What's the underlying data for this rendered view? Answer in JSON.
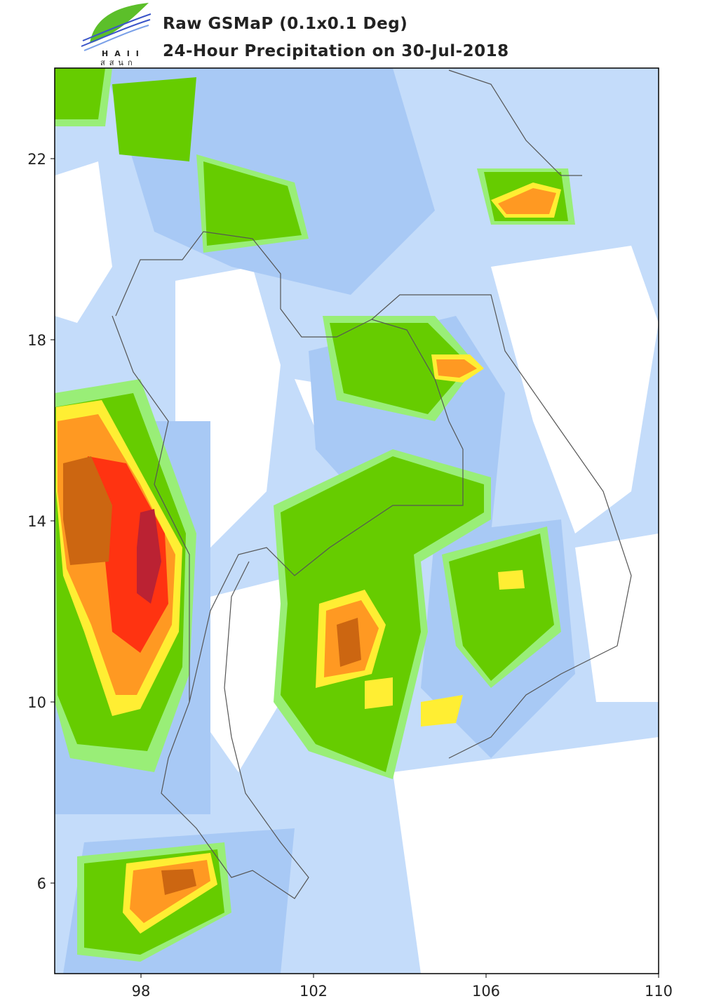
{
  "chart_data": {
    "type": "map",
    "title": "Raw GSMaP (0.1x0.1 Deg)",
    "subtitle": "24-Hour Precipitation on 30-Jul-2018",
    "xlim": [
      96,
      110
    ],
    "ylim": [
      4,
      24
    ],
    "xticks": [
      98,
      102,
      106,
      110
    ],
    "yticks": [
      6,
      10,
      14,
      18,
      22
    ]
  },
  "logo": {
    "name": "HAII",
    "thai": "สสนก"
  }
}
